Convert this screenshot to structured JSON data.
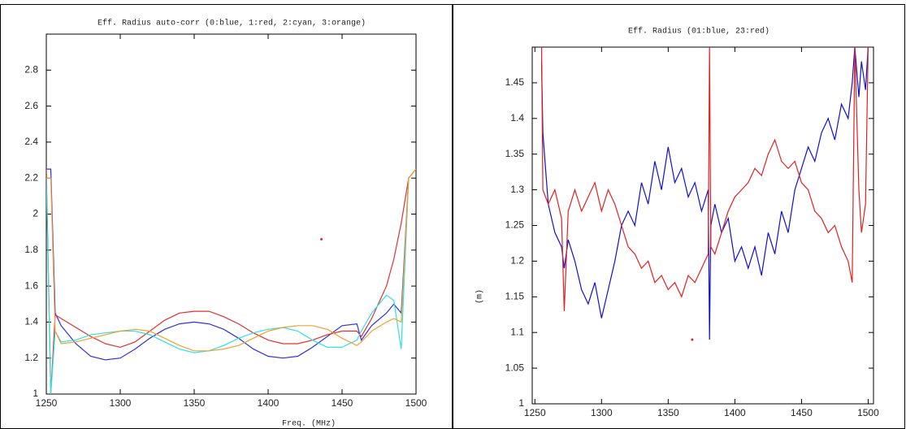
{
  "chart_data": [
    {
      "type": "line",
      "title": "Eff. Radius auto-corr (0:blue, 1:red, 2:cyan, 3:orange)",
      "xlabel": "Freq. (MHz)",
      "x": [
        1250,
        1253,
        1256,
        1260,
        1270,
        1280,
        1290,
        1300,
        1310,
        1320,
        1330,
        1340,
        1350,
        1360,
        1370,
        1380,
        1390,
        1400,
        1410,
        1420,
        1430,
        1440,
        1450,
        1460,
        1463,
        1470,
        1480,
        1485,
        1490,
        1495,
        1500
      ],
      "series": [
        {
          "color": "#3030e0",
          "values": [
            2.25,
            2.25,
            1.45,
            1.38,
            1.28,
            1.21,
            1.19,
            1.2,
            1.25,
            1.31,
            1.36,
            1.39,
            1.4,
            1.39,
            1.36,
            1.31,
            1.25,
            1.21,
            1.2,
            1.21,
            1.26,
            1.32,
            1.38,
            1.39,
            1.3,
            1.38,
            1.45,
            1.5,
            1.45,
            2.2,
            2.25
          ]
        },
        {
          "color": "#e03030",
          "values": [
            2.25,
            1.0,
            1.44,
            1.42,
            1.37,
            1.32,
            1.28,
            1.26,
            1.29,
            1.35,
            1.41,
            1.45,
            1.46,
            1.46,
            1.43,
            1.39,
            1.34,
            1.3,
            1.28,
            1.28,
            1.3,
            1.33,
            1.35,
            1.35,
            1.32,
            1.42,
            1.6,
            1.75,
            1.95,
            2.2,
            2.25
          ]
        },
        {
          "color": "#30e0e0",
          "values": [
            2.2,
            1.0,
            1.35,
            1.29,
            1.3,
            1.33,
            1.34,
            1.35,
            1.35,
            1.33,
            1.29,
            1.25,
            1.23,
            1.24,
            1.27,
            1.31,
            1.34,
            1.36,
            1.37,
            1.35,
            1.3,
            1.26,
            1.26,
            1.3,
            1.35,
            1.45,
            1.55,
            1.52,
            1.25,
            2.2,
            2.25
          ]
        },
        {
          "color": "#f0a030",
          "values": [
            2.2,
            2.2,
            1.35,
            1.28,
            1.29,
            1.31,
            1.33,
            1.35,
            1.36,
            1.35,
            1.31,
            1.27,
            1.24,
            1.24,
            1.25,
            1.27,
            1.31,
            1.35,
            1.37,
            1.38,
            1.38,
            1.36,
            1.31,
            1.27,
            1.29,
            1.35,
            1.4,
            1.42,
            1.4,
            2.2,
            2.25
          ]
        }
      ],
      "points": {
        "x": [
          1436
        ],
        "y": [
          1.86
        ],
        "color": "#e03030"
      },
      "xlim": [
        1250,
        1500
      ],
      "xticks": [
        1250,
        1300,
        1350,
        1400,
        1450,
        1500
      ],
      "ylim": [
        1,
        3
      ],
      "yticks": [
        1,
        1.2,
        1.4,
        1.6,
        1.8,
        2,
        2.2,
        2.4,
        2.6,
        2.8
      ]
    },
    {
      "type": "line",
      "title": "Eff. Radius (01:blue, 23:red)",
      "ylabel": "(m)",
      "x": [
        1255,
        1256,
        1260,
        1265,
        1270,
        1272,
        1275,
        1280,
        1285,
        1290,
        1295,
        1300,
        1305,
        1310,
        1315,
        1320,
        1325,
        1330,
        1335,
        1340,
        1345,
        1350,
        1355,
        1360,
        1365,
        1370,
        1375,
        1380,
        1381,
        1382,
        1385,
        1390,
        1395,
        1400,
        1405,
        1410,
        1415,
        1420,
        1425,
        1430,
        1435,
        1440,
        1445,
        1450,
        1455,
        1460,
        1465,
        1470,
        1475,
        1480,
        1485,
        1488,
        1490,
        1493,
        1495,
        1498,
        1500
      ],
      "series": [
        {
          "color": "#1010d0",
          "values": [
            1.48,
            1.38,
            1.28,
            1.24,
            1.22,
            1.19,
            1.23,
            1.2,
            1.16,
            1.14,
            1.17,
            1.12,
            1.16,
            1.2,
            1.25,
            1.27,
            1.25,
            1.31,
            1.28,
            1.34,
            1.3,
            1.36,
            1.31,
            1.33,
            1.29,
            1.31,
            1.27,
            1.3,
            1.09,
            1.25,
            1.28,
            1.24,
            1.26,
            1.2,
            1.22,
            1.19,
            1.22,
            1.18,
            1.24,
            1.21,
            1.27,
            1.24,
            1.3,
            1.33,
            1.36,
            1.34,
            1.38,
            1.4,
            1.37,
            1.42,
            1.4,
            1.45,
            1.5,
            1.43,
            1.48,
            1.44,
            1.5
          ]
        },
        {
          "color": "#e02020",
          "values": [
            1.5,
            1.3,
            1.28,
            1.3,
            1.26,
            1.13,
            1.27,
            1.3,
            1.27,
            1.29,
            1.31,
            1.27,
            1.3,
            1.28,
            1.25,
            1.22,
            1.21,
            1.19,
            1.2,
            1.17,
            1.18,
            1.16,
            1.17,
            1.15,
            1.18,
            1.17,
            1.19,
            1.21,
            1.5,
            1.22,
            1.21,
            1.24,
            1.27,
            1.29,
            1.3,
            1.31,
            1.33,
            1.32,
            1.35,
            1.37,
            1.34,
            1.33,
            1.34,
            1.31,
            1.3,
            1.27,
            1.26,
            1.24,
            1.25,
            1.22,
            1.2,
            1.17,
            1.5,
            1.3,
            1.24,
            1.28,
            1.5
          ]
        }
      ],
      "points": {
        "x": [
          1368
        ],
        "y": [
          1.09
        ],
        "color": "#e02020"
      },
      "xlim": [
        1248,
        1504
      ],
      "xticks": [
        1250,
        1300,
        1350,
        1400,
        1450,
        1500
      ],
      "ylim": [
        1,
        1.5
      ],
      "yticks": [
        1,
        1.05,
        1.1,
        1.15,
        1.2,
        1.25,
        1.3,
        1.35,
        1.4,
        1.45
      ]
    }
  ]
}
